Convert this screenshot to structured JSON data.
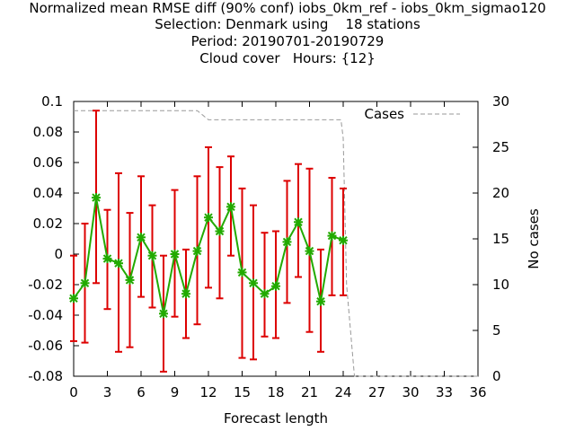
{
  "chart_data": {
    "type": "line",
    "title_lines": [
      "Normalized mean RMSE diff (90% conf) iobs_0km_ref - iobs_0km_sigmao120",
      "Selection: Denmark using    18 stations",
      "Period: 20190701-20190729",
      "Cloud cover   Hours: {12}"
    ],
    "xlabel": "Forecast length",
    "ylabel": "",
    "y2label": "No cases",
    "xlim": [
      0,
      36
    ],
    "ylim": [
      -0.08,
      0.1
    ],
    "y2lim": [
      0,
      30
    ],
    "xticks": [
      "0",
      "3",
      "6",
      "9",
      "12",
      "15",
      "18",
      "21",
      "24",
      "27",
      "30",
      "33",
      "36"
    ],
    "yticks": [
      "-0.08",
      "-0.06",
      "-0.04",
      "-0.02",
      "0",
      "0.02",
      "0.04",
      "0.06",
      "0.08",
      "0.1"
    ],
    "y2ticks": [
      "0",
      "5",
      "10",
      "15",
      "20",
      "25",
      "30"
    ],
    "legend_label": "Cases",
    "legend_position": "top-right",
    "grid": false,
    "colors": {
      "line": "#22aa00",
      "marker": "#22aa00",
      "errorbar": "#dd0000",
      "cases": "#999999"
    },
    "series": [
      {
        "x": [
          0,
          1,
          2,
          3,
          4,
          5,
          6,
          7,
          8,
          9,
          10,
          11,
          12,
          13,
          14,
          15,
          16,
          17,
          18,
          19,
          20,
          21,
          22,
          23,
          24
        ],
        "values": [
          -0.029,
          -0.019,
          0.037,
          -0.003,
          -0.006,
          -0.017,
          0.011,
          -0.001,
          -0.039,
          0.0,
          -0.026,
          0.002,
          0.024,
          0.015,
          0.031,
          -0.012,
          -0.019,
          -0.026,
          -0.021,
          0.008,
          0.021,
          0.002,
          -0.031,
          0.012,
          0.009
        ],
        "err_low": [
          -0.057,
          -0.058,
          -0.019,
          -0.036,
          -0.064,
          -0.061,
          -0.028,
          -0.035,
          -0.077,
          -0.041,
          -0.055,
          -0.046,
          -0.022,
          -0.029,
          -0.001,
          -0.068,
          -0.069,
          -0.054,
          -0.055,
          -0.032,
          -0.015,
          -0.051,
          -0.064,
          -0.027,
          -0.027
        ],
        "err_high": [
          -0.001,
          0.02,
          0.094,
          0.029,
          0.053,
          0.027,
          0.051,
          0.032,
          -0.001,
          0.042,
          0.003,
          0.051,
          0.07,
          0.057,
          0.064,
          0.043,
          0.032,
          0.014,
          0.015,
          0.048,
          0.059,
          0.056,
          0.003,
          0.05,
          0.043
        ]
      }
    ],
    "cases": {
      "x": [
        0,
        1,
        2,
        3,
        4,
        5,
        6,
        7,
        8,
        9,
        10,
        11,
        11.5,
        12,
        13,
        14,
        15,
        16,
        17,
        18,
        19,
        20,
        21,
        22,
        23,
        23.8,
        24,
        24.3,
        25,
        26,
        27,
        28,
        29,
        30,
        31,
        32,
        33,
        34,
        35,
        36
      ],
      "values": [
        29,
        29,
        29,
        29,
        29,
        29,
        29,
        29,
        29,
        29,
        29,
        29,
        28.5,
        28,
        28,
        28,
        28,
        28,
        28,
        28,
        28,
        28,
        28,
        28,
        28,
        28,
        26,
        10,
        0,
        0,
        0,
        0,
        0,
        0,
        0,
        0,
        0,
        0,
        0,
        0
      ]
    }
  }
}
